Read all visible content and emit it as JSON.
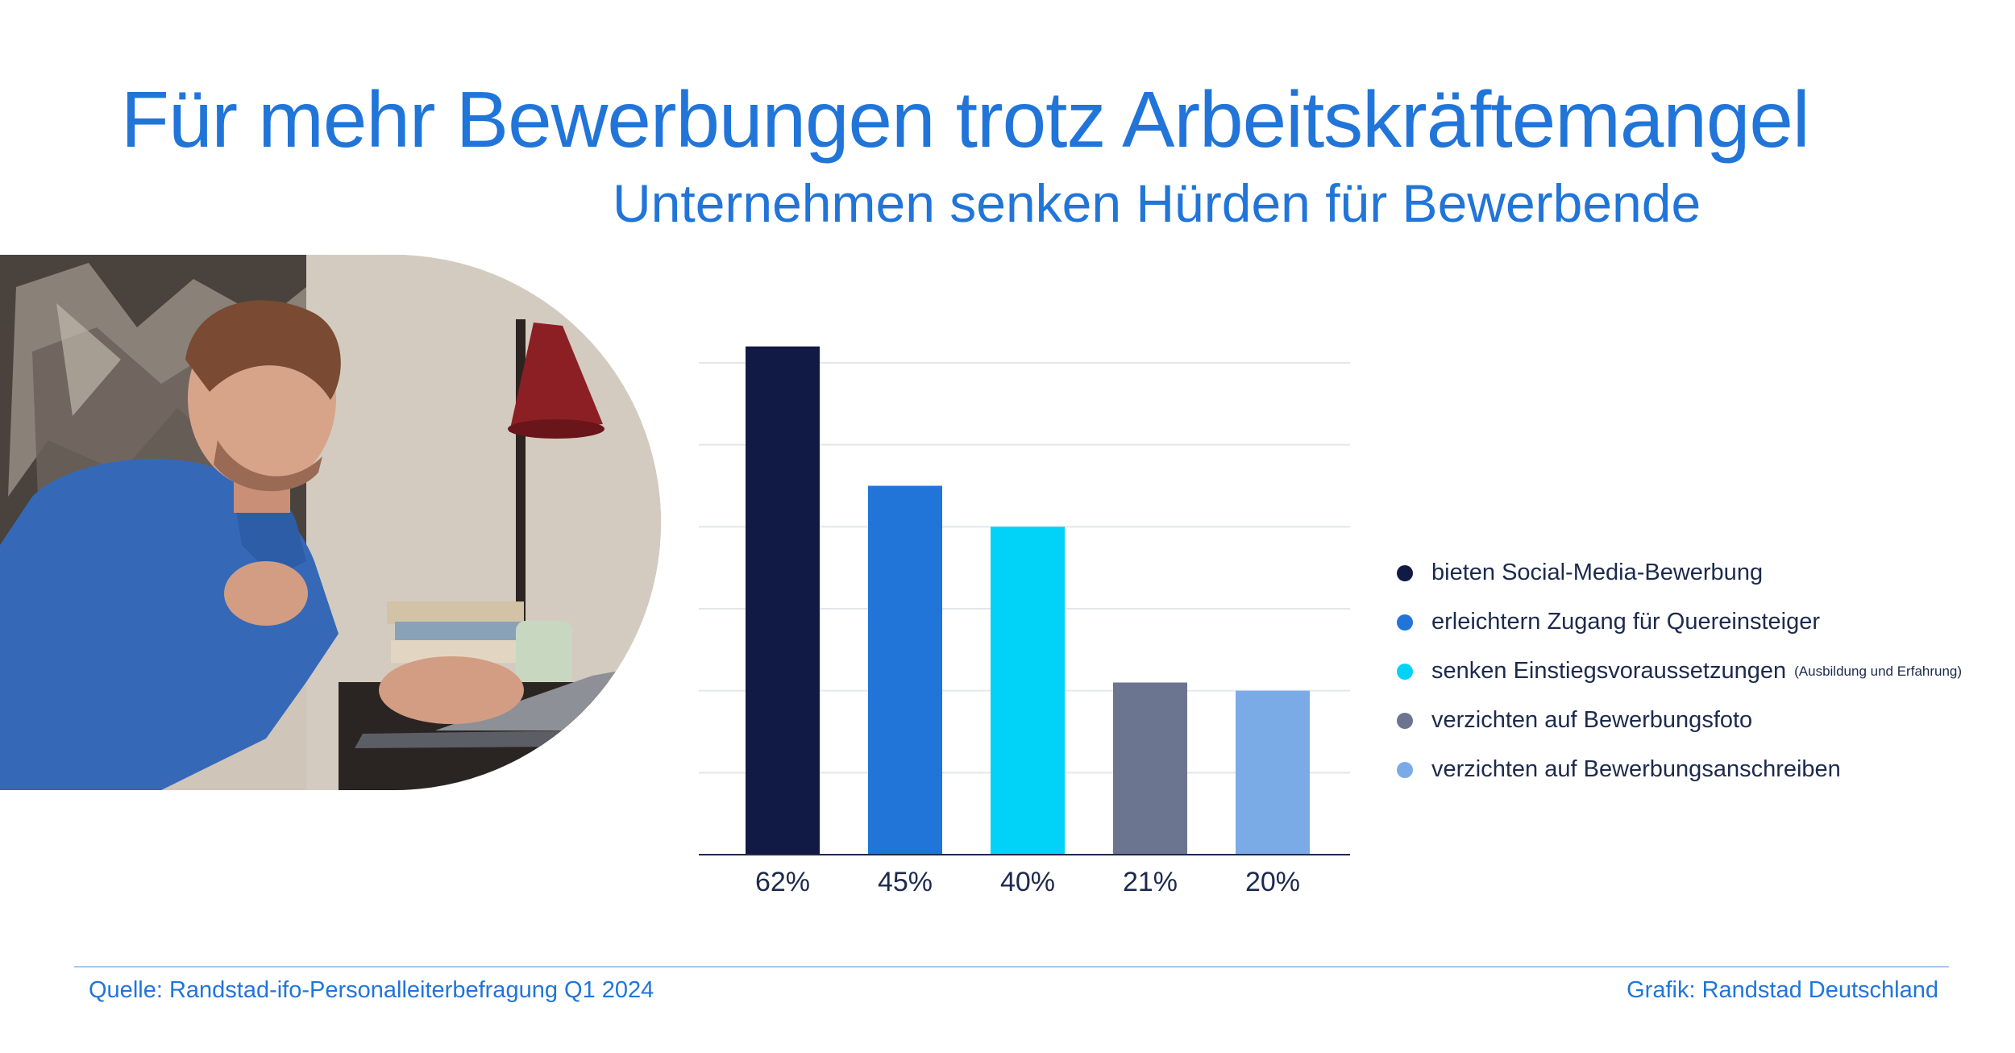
{
  "title": "Für mehr Bewerbungen trotz Arbeitskräftemangel",
  "subtitle": "Unternehmen senken Hürden für Bewerbende",
  "colors": {
    "accent": "#2175d9",
    "series": [
      "#111a45",
      "#2175d9",
      "#00d2f8",
      "#6c7590",
      "#7babe6"
    ]
  },
  "legend": [
    {
      "label": "bieten Social-Media-Bewerbung",
      "note": ""
    },
    {
      "label": "erleichtern Zugang für Quereinsteiger",
      "note": ""
    },
    {
      "label": "senken Einstiegsvoraussetzungen",
      "note": "(Ausbildung und Erfahrung)"
    },
    {
      "label": "verzichten auf Bewerbungsfoto",
      "note": ""
    },
    {
      "label": "verzichten auf Bewerbungsanschreiben",
      "note": ""
    }
  ],
  "chart_data": {
    "type": "bar",
    "categories": [
      "bieten Social-Media-Bewerbung",
      "erleichtern Zugang für Quereinsteiger",
      "senken Einstiegsvoraussetzungen (Ausbildung und Erfahrung)",
      "verzichten auf Bewerbungsfoto",
      "verzichten auf Bewerbungsanschreiben"
    ],
    "values": [
      62,
      45,
      40,
      21,
      20
    ],
    "tick_labels": [
      "62%",
      "45%",
      "40%",
      "21%",
      "20%"
    ],
    "unit": "%",
    "ylim": [
      0,
      60
    ],
    "grid": true,
    "legend_position": "right"
  },
  "footer": {
    "source": "Quelle: Randstad-ifo-Personalleiterbefragung Q1 2024",
    "credit": "Grafik: Randstad Deutschland"
  }
}
